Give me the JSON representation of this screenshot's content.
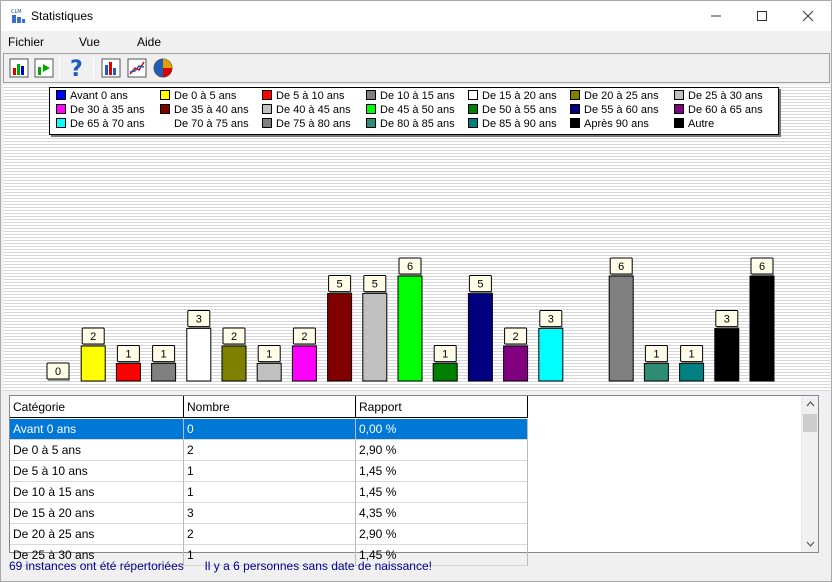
{
  "window": {
    "title": "Statistiques",
    "minimize_icon": "minimize-icon",
    "maximize_icon": "maximize-icon",
    "close_icon": "close-icon"
  },
  "menu": [
    "Fichier",
    "Vue",
    "Aide"
  ],
  "toolbar": {
    "buttons": [
      "bar-chart-icon",
      "export-chart-icon",
      "help-icon",
      "histogram-icon",
      "line-chart-icon",
      "pie-chart-icon"
    ]
  },
  "chart_data": {
    "type": "bar",
    "categories": [
      "Avant 0 ans",
      "De 0 à 5 ans",
      "De 5 à 10 ans",
      "De 10 à 15 ans",
      "De 15 à 20 ans",
      "De 20 à 25 ans",
      "De 25 à 30 ans",
      "De 30 à 35 ans",
      "De 35 à 40 ans",
      "De 40 à 45 ans",
      "De 45 à 50 ans",
      "De 50 à 55 ans",
      "De 55 à 60 ans",
      "De 60 à 65 ans",
      "De 65 à 70 ans",
      "De 70 à 75 ans",
      "De 75 à 80 ans",
      "De 80 à 85 ans",
      "De 85 à 90 ans",
      "Après 90 ans",
      "Autre"
    ],
    "values": [
      0,
      2,
      1,
      1,
      3,
      2,
      1,
      2,
      5,
      5,
      6,
      1,
      5,
      2,
      3,
      null,
      6,
      1,
      1,
      3,
      6
    ],
    "colors": [
      "#0000ff",
      "#ffff00",
      "#ff0000",
      "#808080",
      "#ffffff",
      "#808000",
      "#c0c0c0",
      "#ff00ff",
      "#800000",
      "#c0c0c0",
      "#00ff00",
      "#008000",
      "#000080",
      "#800080",
      "#00ffff",
      "#ffffff",
      "#808080",
      "#2e8b74",
      "#008080",
      "#000000",
      "#000000"
    ],
    "title": "",
    "xlabel": "",
    "ylabel": "",
    "ylim": [
      0,
      7
    ],
    "grid": true,
    "legend": "top"
  },
  "table": {
    "columns": [
      "Catégorie",
      "Nombre",
      "Rapport"
    ],
    "rows": [
      [
        "Avant 0 ans",
        "0",
        "0,00 %"
      ],
      [
        "De 0 à 5 ans",
        "2",
        "2,90 %"
      ],
      [
        "De 5 à 10 ans",
        "1",
        "1,45 %"
      ],
      [
        "De 10 à 15 ans",
        "1",
        "1,45 %"
      ],
      [
        "De 15 à 20 ans",
        "3",
        "4,35 %"
      ],
      [
        "De 20 à 25 ans",
        "2",
        "2,90 %"
      ],
      [
        "De 25 à 30 ans",
        "1",
        "1,45 %"
      ]
    ],
    "selected_row": 0
  },
  "status": {
    "instances": "69 instances ont été répertoriées",
    "warning": "Il y a 6 personnes sans date de naissance!"
  }
}
